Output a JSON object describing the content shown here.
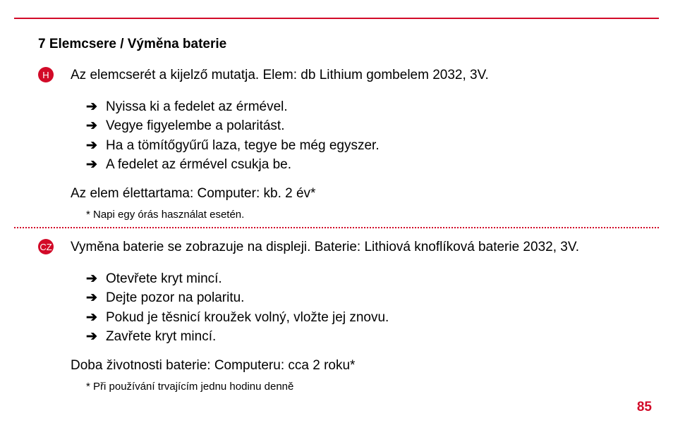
{
  "section_title": "7 Elemcsere / Výměna baterie",
  "colors": {
    "accent": "#d20a28",
    "text": "#000000",
    "background": "#ffffff"
  },
  "page_number": "85",
  "lang1": {
    "badge": "H",
    "intro": "Az elemcserét a kijelző mutatja. Elem: db Lithium gombelem 2032, 3V.",
    "bullets": [
      "Nyissa ki a fedelet az érmével.",
      "Vegye figyelembe a polaritást.",
      "Ha a tömítőgyűrű laza, tegye be még egyszer.",
      "A fedelet az érmével csukja be."
    ],
    "lifetime": "Az elem élettartama: Computer: kb. 2 év*",
    "footnote": "* Napi egy órás használat esetén."
  },
  "lang2": {
    "badge": "CZ",
    "intro": "Vyměna baterie se zobrazuje na displeji. Baterie: Lithiová knoflíková baterie 2032, 3V.",
    "bullets": [
      "Otevřete kryt mincí.",
      "Dejte pozor na polaritu.",
      "Pokud je těsnicí kroužek volný, vložte jej znovu.",
      "Zavřete kryt mincí."
    ],
    "lifetime": "Doba životnosti baterie: Computeru: cca 2 roku*",
    "footnote": "* Při používání trvajícím jednu hodinu denně"
  },
  "arrow_glyph": "➔"
}
